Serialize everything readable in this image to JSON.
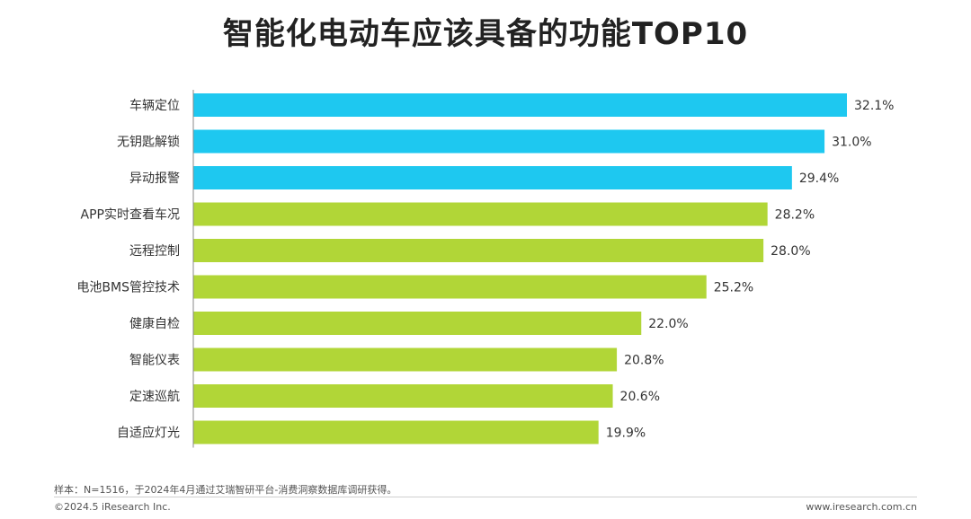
{
  "chart_data": {
    "type": "bar",
    "orientation": "horizontal",
    "title": "智能化电动车应该具备的功能TOP10",
    "categories": [
      "车辆定位",
      "无钥匙解锁",
      "异动报警",
      "APP实时查看车况",
      "远程控制",
      "电池BMS管控技术",
      "健康自检",
      "智能仪表",
      "定速巡航",
      "自适应灯光"
    ],
    "values": [
      32.1,
      31.0,
      29.4,
      28.2,
      28.0,
      25.2,
      22.0,
      20.8,
      20.6,
      19.9
    ],
    "value_labels": [
      "32.1%",
      "31.0%",
      "29.4%",
      "28.2%",
      "28.0%",
      "25.2%",
      "22.0%",
      "20.8%",
      "20.6%",
      "19.9%"
    ],
    "xlim": [
      0,
      32.1
    ],
    "grid": false,
    "highlight_count": 3,
    "colors": {
      "highlight": "#1EC8F0",
      "normal": "#B1D637",
      "axis": "#888888",
      "label": "#333333"
    }
  },
  "footer": {
    "note": "样本：N=1516，于2024年4月通过艾瑞智研平台-消费洞察数据库调研获得。",
    "copyright": "©2024.5 iResearch Inc.",
    "website": "www.iresearch.com.cn"
  }
}
